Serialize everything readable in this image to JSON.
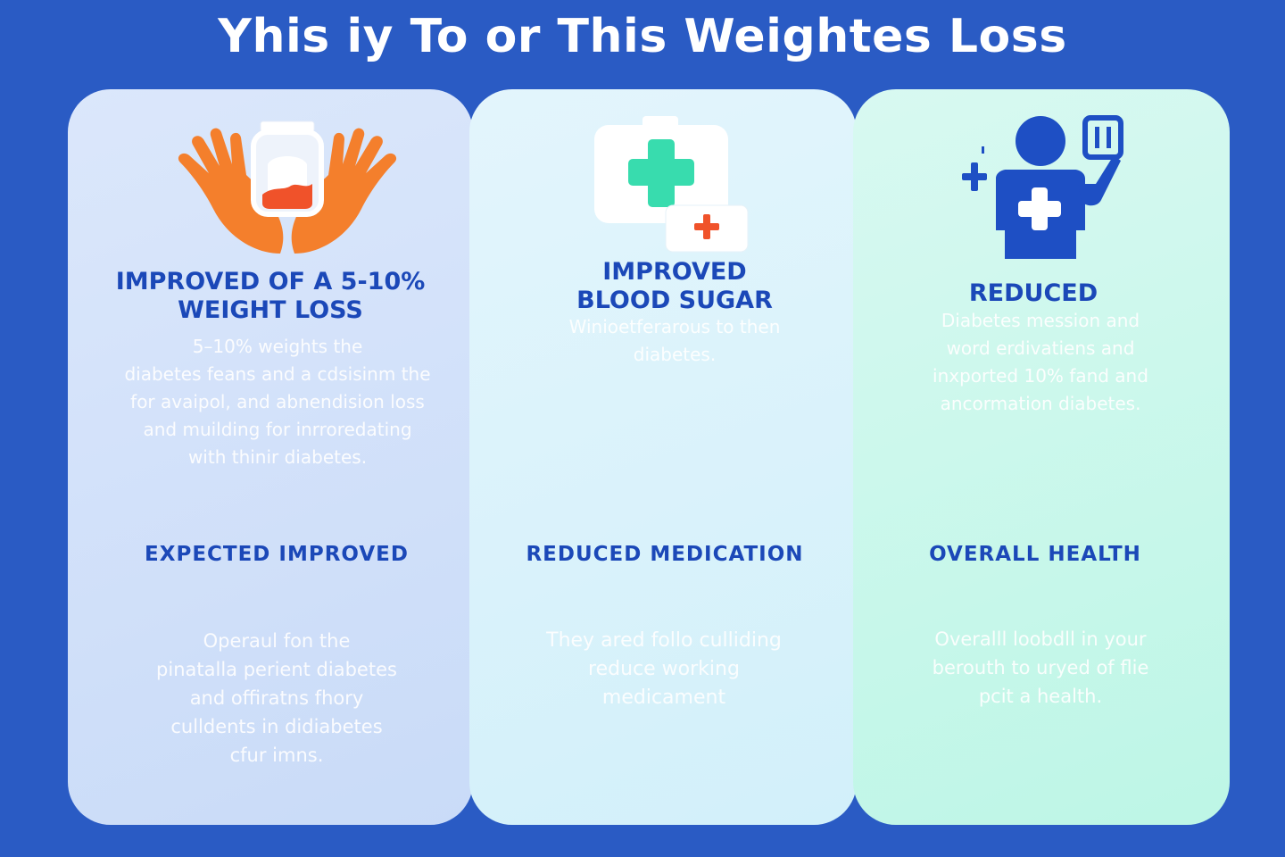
{
  "page": {
    "title": "Yhis iy To or This Weightes Loss"
  },
  "colors": {
    "background": "#2a5bc4",
    "heading": "#1b48b8",
    "hand_orange": "#f47f2c",
    "medical_teal": "#38dcae",
    "medical_red": "#f0522a",
    "person_blue": "#1e4fc4"
  },
  "panels": [
    {
      "icon": "hands-holding-jar-icon",
      "heading_lines": [
        "IMPROVED OF A 5-10%",
        "WEIGHT LOSS"
      ],
      "body_lines": [
        "5–10% weights the",
        "diabetes feans and a cdsisinm the",
        "for avaipol, and abnendision loss",
        "and muilding for inrroredating",
        "with thinir diabetes."
      ],
      "sub_heading": "EXPECTED IMPROVED",
      "sub_body_lines": [
        "Operaul fon the",
        "pinatalla perient diabetes",
        "and offiratns fhory",
        "culldents in didiabetes",
        "cfur imns."
      ]
    },
    {
      "icon": "medical-kit-icon",
      "heading_lines": [
        "IMPROVED",
        "BLOOD SUGAR"
      ],
      "body_lines": [
        "Winioetferarous to then",
        "diabetes."
      ],
      "sub_heading": "REDUCED MEDICATION",
      "sub_body_lines": [
        "They ared follo culliding",
        "reduce working",
        "medicament"
      ]
    },
    {
      "icon": "person-with-medical-cross-icon",
      "heading_lines": [
        "REDUCED"
      ],
      "body_lines": [
        "Diabetes mession and",
        "word erdivatiens and",
        "inxported 10% fand and",
        "ancormation diabetes."
      ],
      "sub_heading": "OVERALL HEALTH",
      "sub_body_lines": [
        "Overalll loobdll in your",
        "berouth to uryed of flie",
        "pcit a health."
      ]
    }
  ]
}
